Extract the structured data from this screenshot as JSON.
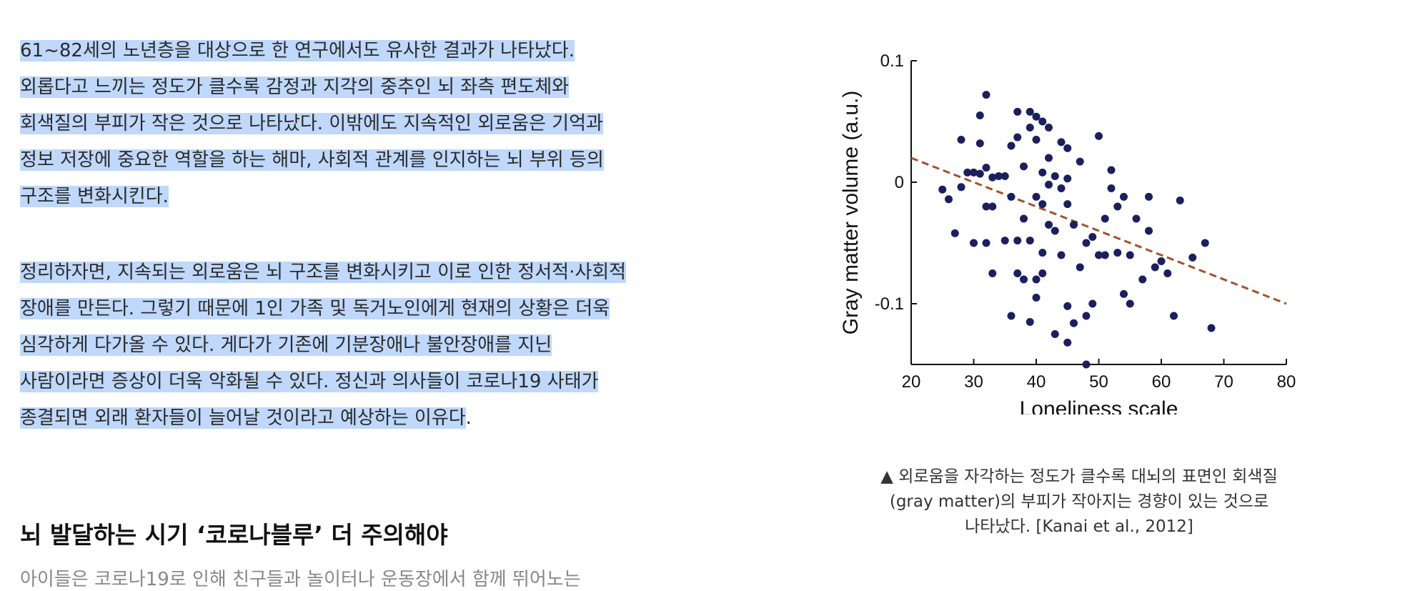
{
  "article": {
    "paragraph1": "61~82세의 노년층을 대상으로 한 연구에서도 유사한 결과가 나타났다. 외롭다고 느끼는 정도가 클수록 감정과 지각의 중추인 뇌 좌측 편도체와 회색질의 부피가 작은 것으로 나타났다. 이밖에도 지속적인 외로움은 기억과 정보 저장에 중요한 역할을 하는 해마, 사회적 관계를 인지하는 뇌 부위 등의 구조를 변화시킨다.",
    "paragraph1_lines": [
      "61~82세의 노년층을 대상으로 한 연구에서도 유사한 결과가 나타났다.",
      "외롭다고 느끼는 정도가 클수록 감정과 지각의 중추인 뇌 좌측 편도체와",
      "회색질의 부피가 작은 것으로 나타났다. 이밖에도 지속적인 외로움은 기억과",
      "정보 저장에 중요한 역할을 하는 해마, 사회적 관계를 인지하는 뇌 부위 등의",
      "구조를 변화시킨다."
    ],
    "paragraph2_lines": [
      "정리하자면, 지속되는 외로움은 뇌 구조를 변화시키고 이로 인한 정서적·사회적",
      "장애를 만든다. 그렇기 때문에 1인 가족 및 독거노인에게 현재의 상황은 더욱",
      "심각하게 다가올 수 있다. 게다가 기존에 기분장애나 불안장애를 지닌",
      "사람이라면 증상이 더욱 악화될 수 있다. 정신과 의사들이 코로나19 사태가",
      "종결되면 외래 환자들이 늘어날 것이라고 예상하는 이유다"
    ],
    "paragraph2_tail": ".",
    "heading": "뇌 발달하는 시기 ‘코로나블루’ 더 주의해야",
    "cut_line": "아이들은 코로나19로 인해 친구들과 놀이터나 운동장에서 함께 뛰어노는"
  },
  "figure": {
    "caption_lines": [
      "▲ 외로움을 자각하는 정도가 클수록 대뇌의 표면인 회색질",
      "(gray matter)의 부피가 작아지는 경향이 있는 것으로",
      "나타났다. [Kanai et al., 2012]"
    ]
  },
  "chart_data": {
    "type": "scatter",
    "xlabel": "Loneliness scale",
    "ylabel": "Gray matter volume (a.u.)",
    "xlim": [
      20,
      80
    ],
    "ylim": [
      -0.15,
      0.1
    ],
    "xticks": [
      20,
      30,
      40,
      50,
      60,
      70,
      80
    ],
    "yticks": [
      {
        "v": 0.1,
        "label": "0.1"
      },
      {
        "v": 0,
        "label": "0"
      },
      {
        "v": -0.1,
        "label": "-0.1"
      }
    ],
    "trend_line": {
      "x": [
        20,
        80
      ],
      "y": [
        0.02,
        -0.1
      ],
      "color": "#a0522d",
      "style": "dashed"
    },
    "point_color": "#1c1f5e",
    "points": [
      [
        25,
        -0.006
      ],
      [
        26,
        -0.014
      ],
      [
        27,
        -0.042
      ],
      [
        28,
        -0.004
      ],
      [
        28,
        0.035
      ],
      [
        29,
        0.008
      ],
      [
        30,
        0.008
      ],
      [
        30,
        -0.05
      ],
      [
        31,
        0.007
      ],
      [
        31,
        0.055
      ],
      [
        31,
        0.032
      ],
      [
        32,
        0.072
      ],
      [
        32,
        0.012
      ],
      [
        32,
        -0.05
      ],
      [
        32,
        -0.02
      ],
      [
        33,
        0.004
      ],
      [
        33,
        -0.02
      ],
      [
        33,
        -0.075
      ],
      [
        34,
        0.005
      ],
      [
        35,
        0.005
      ],
      [
        35,
        -0.048
      ],
      [
        36,
        0.03
      ],
      [
        36,
        -0.012
      ],
      [
        37,
        0.058
      ],
      [
        37,
        0.037
      ],
      [
        37,
        -0.048
      ],
      [
        37,
        -0.075
      ],
      [
        38,
        0.013
      ],
      [
        38,
        -0.03
      ],
      [
        38,
        -0.08
      ],
      [
        39,
        0.058
      ],
      [
        39,
        0.045
      ],
      [
        39,
        -0.048
      ],
      [
        40,
        0.054
      ],
      [
        40,
        0.035
      ],
      [
        40,
        -0.012
      ],
      [
        40,
        -0.08
      ],
      [
        41,
        0.05
      ],
      [
        41,
        0.008
      ],
      [
        41,
        -0.018
      ],
      [
        41,
        -0.058
      ],
      [
        41,
        -0.075
      ],
      [
        42,
        0.045
      ],
      [
        42,
        0.02
      ],
      [
        42,
        -0.002
      ],
      [
        42,
        -0.035
      ],
      [
        43,
        0.005
      ],
      [
        43,
        -0.04
      ],
      [
        44,
        0.033
      ],
      [
        44,
        -0.005
      ],
      [
        44,
        -0.06
      ],
      [
        45,
        0.028
      ],
      [
        45,
        0.003
      ],
      [
        45,
        -0.018
      ],
      [
        45,
        -0.102
      ],
      [
        46,
        -0.035
      ],
      [
        47,
        0.017
      ],
      [
        47,
        -0.07
      ],
      [
        48,
        -0.05
      ],
      [
        48,
        -0.11
      ],
      [
        49,
        -0.045
      ],
      [
        49,
        -0.1
      ],
      [
        50,
        0.038
      ],
      [
        50,
        -0.06
      ],
      [
        51,
        -0.06
      ],
      [
        51,
        -0.03
      ],
      [
        52,
        0.01
      ],
      [
        52,
        -0.005
      ],
      [
        53,
        -0.02
      ],
      [
        53,
        -0.058
      ],
      [
        54,
        -0.012
      ],
      [
        54,
        -0.092
      ],
      [
        55,
        -0.06
      ],
      [
        55,
        -0.1
      ],
      [
        56,
        -0.03
      ],
      [
        57,
        -0.08
      ],
      [
        58,
        -0.012
      ],
      [
        58,
        -0.04
      ],
      [
        59,
        -0.07
      ],
      [
        60,
        -0.065
      ],
      [
        61,
        -0.075
      ],
      [
        62,
        -0.11
      ],
      [
        63,
        -0.015
      ],
      [
        65,
        -0.062
      ],
      [
        67,
        -0.05
      ],
      [
        68,
        -0.12
      ],
      [
        39,
        -0.115
      ],
      [
        43,
        -0.125
      ],
      [
        45,
        -0.132
      ],
      [
        46,
        -0.116
      ],
      [
        48,
        -0.15
      ],
      [
        36,
        -0.11
      ],
      [
        40,
        -0.095
      ]
    ]
  }
}
